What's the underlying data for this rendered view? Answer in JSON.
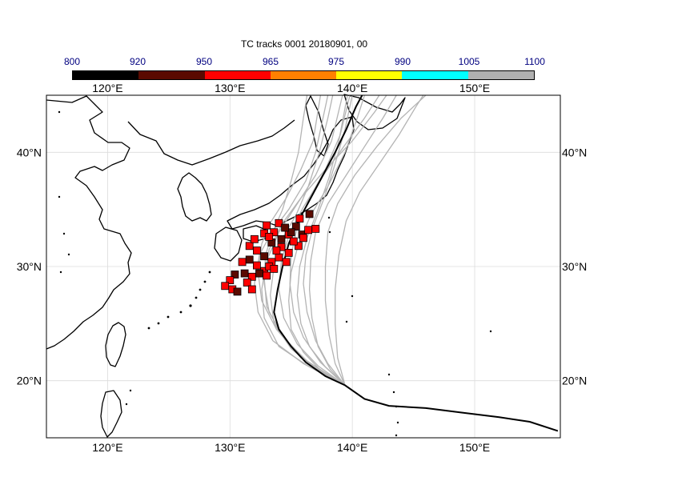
{
  "title": "TC tracks  0001 20180901, 00",
  "colorbar": {
    "labels": [
      "800",
      "920",
      "950",
      "965",
      "975",
      "990",
      "1005",
      "1100"
    ],
    "colors": [
      "#000000",
      "#5a0a00",
      "#ff0000",
      "#ff8000",
      "#ffff00",
      "#00ffff",
      "#b0b0b0"
    ]
  },
  "axes": {
    "lon_top": [
      "120°E",
      "130°E",
      "140°E",
      "150°E"
    ],
    "lon_bottom": [
      "120°E",
      "130°E",
      "140°E",
      "150°E"
    ],
    "lat_left": [
      "40°N",
      "30°N",
      "20°N"
    ],
    "lat_right": [
      "40°N",
      "30°N",
      "20°N"
    ],
    "lon_range": [
      115,
      157
    ],
    "lat_range": [
      15,
      45
    ]
  },
  "colors": {
    "ensemble_track": "#b4b4b4",
    "mean_track": "#000000",
    "coast": "#000000",
    "grid": "#dcdcdc"
  },
  "tracks": {
    "mean": [
      [
        156.8,
        15.6
      ],
      [
        154.5,
        16.4
      ],
      [
        152,
        16.8
      ],
      [
        149,
        17.2
      ],
      [
        146,
        17.6
      ],
      [
        143,
        17.8
      ],
      [
        141,
        18.4
      ],
      [
        139.4,
        19.6
      ],
      [
        137.8,
        20.4
      ],
      [
        136.2,
        21.6
      ],
      [
        135,
        23
      ],
      [
        134,
        24.5
      ],
      [
        133.6,
        26
      ],
      [
        133.9,
        28
      ],
      [
        134.3,
        30
      ],
      [
        134.8,
        32
      ],
      [
        135.6,
        34
      ],
      [
        136.6,
        36
      ],
      [
        137.6,
        38
      ],
      [
        138.6,
        40
      ],
      [
        139.5,
        42
      ],
      [
        140.3,
        44
      ],
      [
        140.8,
        45
      ]
    ],
    "ensemble": [
      [
        [
          139.4,
          19.6
        ],
        [
          136,
          21.5
        ],
        [
          133.5,
          23.5
        ],
        [
          132.3,
          26
        ],
        [
          132,
          28.5
        ],
        [
          132.4,
          31
        ],
        [
          133.4,
          33
        ],
        [
          134.8,
          35
        ],
        [
          136.2,
          37.5
        ],
        [
          137,
          40
        ],
        [
          137.6,
          43
        ],
        [
          138,
          45
        ]
      ],
      [
        [
          139.4,
          19.6
        ],
        [
          136.5,
          21.2
        ],
        [
          134,
          23
        ],
        [
          132.8,
          25.5
        ],
        [
          132.6,
          28
        ],
        [
          133,
          30.5
        ],
        [
          134,
          33
        ],
        [
          135.5,
          35.5
        ],
        [
          137,
          38
        ],
        [
          138.3,
          41
        ],
        [
          139.2,
          45
        ]
      ],
      [
        [
          139.4,
          19.6
        ],
        [
          137,
          21
        ],
        [
          135,
          22.8
        ],
        [
          133.6,
          25
        ],
        [
          133.3,
          27.5
        ],
        [
          133.6,
          30
        ],
        [
          134.3,
          32.5
        ],
        [
          135.4,
          34.5
        ],
        [
          136.4,
          37
        ],
        [
          137.3,
          40
        ],
        [
          138,
          43
        ],
        [
          138.4,
          45
        ]
      ],
      [
        [
          139.4,
          19.6
        ],
        [
          137.5,
          20.8
        ],
        [
          136,
          22.5
        ],
        [
          135,
          24.5
        ],
        [
          134.8,
          27
        ],
        [
          135,
          29.5
        ],
        [
          135.6,
          32
        ],
        [
          136.6,
          34.5
        ],
        [
          138,
          37
        ],
        [
          139.4,
          40
        ],
        [
          140.4,
          43
        ],
        [
          141,
          45
        ]
      ],
      [
        [
          139.4,
          19.6
        ],
        [
          138.2,
          21
        ],
        [
          137.2,
          23
        ],
        [
          136.7,
          25.5
        ],
        [
          136.5,
          28
        ],
        [
          136.6,
          30.5
        ],
        [
          137,
          33
        ],
        [
          138,
          35.5
        ],
        [
          139.5,
          38
        ],
        [
          141,
          40.5
        ],
        [
          142.5,
          43
        ],
        [
          143.6,
          45
        ]
      ],
      [
        [
          139.4,
          19.6
        ],
        [
          138.6,
          21.5
        ],
        [
          138.1,
          24
        ],
        [
          137.8,
          27
        ],
        [
          137.8,
          30
        ],
        [
          138,
          33
        ],
        [
          138.8,
          35.5
        ],
        [
          140.2,
          38
        ],
        [
          142,
          40.5
        ],
        [
          144,
          43
        ],
        [
          146,
          45
        ]
      ],
      [
        [
          139.4,
          19.6
        ],
        [
          136.8,
          21.2
        ],
        [
          134.6,
          23.5
        ],
        [
          133.2,
          26
        ],
        [
          132.8,
          28.5
        ],
        [
          132.9,
          31
        ],
        [
          133.5,
          33
        ],
        [
          134.3,
          35
        ],
        [
          135,
          37.5
        ],
        [
          135.6,
          40
        ],
        [
          136,
          43
        ],
        [
          136.3,
          45
        ]
      ],
      [
        [
          139.4,
          19.6
        ],
        [
          137.2,
          21.3
        ],
        [
          135.5,
          23.2
        ],
        [
          134.4,
          25.5
        ],
        [
          134,
          28
        ],
        [
          134.2,
          30.5
        ],
        [
          134.9,
          33
        ],
        [
          136,
          35.2
        ],
        [
          137.5,
          37.8
        ],
        [
          139.3,
          40.5
        ],
        [
          141,
          43
        ],
        [
          142.2,
          45
        ]
      ],
      [
        [
          139.4,
          19.6
        ],
        [
          136.2,
          21.8
        ],
        [
          134.2,
          24
        ],
        [
          133,
          26.5
        ],
        [
          132.8,
          29
        ],
        [
          133.2,
          31.5
        ],
        [
          134.3,
          33.8
        ],
        [
          135.8,
          36
        ],
        [
          137.8,
          38.5
        ],
        [
          140,
          41
        ],
        [
          141.8,
          43.5
        ],
        [
          142.8,
          45
        ]
      ],
      [
        [
          139.4,
          19.6
        ],
        [
          137.8,
          21.2
        ],
        [
          136.5,
          23
        ],
        [
          135.8,
          25
        ],
        [
          135.5,
          27.5
        ],
        [
          135.7,
          30
        ],
        [
          136.3,
          32.5
        ],
        [
          137.2,
          35
        ],
        [
          138.1,
          37.8
        ],
        [
          138.9,
          41
        ],
        [
          139.6,
          45
        ]
      ],
      [
        [
          139.4,
          19.6
        ],
        [
          138,
          21.5
        ],
        [
          137,
          23.5
        ],
        [
          136.3,
          26
        ],
        [
          136,
          28.5
        ],
        [
          136.2,
          31
        ],
        [
          136.8,
          33.5
        ],
        [
          137.7,
          36
        ],
        [
          138.6,
          39
        ],
        [
          139.4,
          42
        ],
        [
          140,
          45
        ]
      ],
      [
        [
          139.4,
          19.6
        ],
        [
          135.8,
          22
        ],
        [
          133.8,
          24.5
        ],
        [
          132.6,
          27
        ],
        [
          132.3,
          29.5
        ],
        [
          132.6,
          32
        ],
        [
          133.4,
          34
        ],
        [
          134.6,
          36
        ],
        [
          135.8,
          38.5
        ],
        [
          136.8,
          41
        ],
        [
          137.4,
          45
        ]
      ],
      [
        [
          139.4,
          19.6
        ],
        [
          138.8,
          22
        ],
        [
          138.6,
          25
        ],
        [
          138.6,
          28
        ],
        [
          138.9,
          31
        ],
        [
          139.5,
          34
        ],
        [
          140.6,
          36.5
        ],
        [
          142.2,
          39
        ],
        [
          143.8,
          41.5
        ],
        [
          145.2,
          44
        ],
        [
          145.8,
          45
        ]
      ],
      [
        [
          139.4,
          19.6
        ],
        [
          137.4,
          21.6
        ],
        [
          136,
          23.8
        ],
        [
          135.2,
          26
        ],
        [
          134.9,
          28.5
        ],
        [
          135,
          31
        ],
        [
          135.5,
          33.5
        ],
        [
          136.5,
          36
        ],
        [
          137.8,
          38.5
        ],
        [
          139,
          41.5
        ],
        [
          139.8,
          45
        ]
      ]
    ]
  },
  "intensity_markers": {
    "columns": [
      "lon",
      "lat",
      "pressure_class"
    ],
    "points": [
      [
        133.0,
        33.6,
        "950"
      ],
      [
        133.6,
        33.0,
        "950"
      ],
      [
        134.2,
        32.4,
        "920"
      ],
      [
        134.8,
        32.8,
        "950"
      ],
      [
        135.4,
        33.5,
        "920"
      ],
      [
        135.7,
        34.2,
        "950"
      ],
      [
        136.5,
        34.6,
        "920"
      ],
      [
        137.0,
        33.3,
        "950"
      ],
      [
        134.0,
        33.8,
        "950"
      ],
      [
        135.0,
        33.0,
        "920"
      ],
      [
        135.9,
        32.8,
        "920"
      ],
      [
        136.4,
        33.2,
        "950"
      ],
      [
        132.8,
        32.9,
        "950"
      ],
      [
        133.4,
        32.1,
        "920"
      ],
      [
        134.2,
        31.7,
        "950"
      ],
      [
        134.8,
        31.2,
        "950"
      ],
      [
        135.6,
        31.8,
        "950"
      ],
      [
        132.2,
        31.4,
        "950"
      ],
      [
        132.8,
        30.9,
        "920"
      ],
      [
        133.4,
        30.4,
        "950"
      ],
      [
        134.0,
        30.8,
        "950"
      ],
      [
        131.6,
        30.6,
        "920"
      ],
      [
        132.2,
        30.1,
        "950"
      ],
      [
        132.8,
        29.6,
        "950"
      ],
      [
        133.2,
        30.0,
        "950"
      ],
      [
        131.0,
        30.4,
        "950"
      ],
      [
        130.4,
        29.3,
        "920"
      ],
      [
        131.2,
        29.4,
        "920"
      ],
      [
        131.8,
        29.1,
        "950"
      ],
      [
        132.4,
        29.4,
        "920"
      ],
      [
        133.0,
        29.2,
        "950"
      ],
      [
        131.4,
        28.6,
        "950"
      ],
      [
        130.0,
        28.8,
        "950"
      ],
      [
        129.6,
        28.3,
        "950"
      ],
      [
        130.2,
        28.0,
        "950"
      ],
      [
        130.6,
        27.8,
        "920"
      ],
      [
        131.8,
        28.0,
        "950"
      ],
      [
        133.2,
        32.6,
        "950"
      ],
      [
        134.5,
        33.4,
        "920"
      ],
      [
        135.2,
        32.2,
        "950"
      ],
      [
        133.8,
        31.4,
        "950"
      ],
      [
        134.6,
        30.4,
        "950"
      ],
      [
        131.6,
        31.8,
        "950"
      ],
      [
        136.0,
        32.5,
        "950"
      ],
      [
        132.0,
        32.4,
        "950"
      ],
      [
        133.6,
        29.8,
        "950"
      ]
    ]
  }
}
